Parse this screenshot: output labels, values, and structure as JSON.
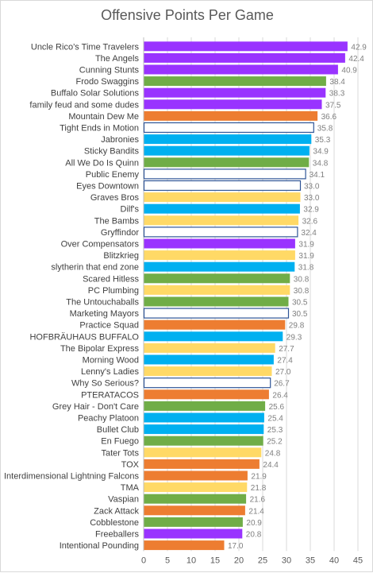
{
  "chart_data": {
    "type": "bar",
    "orientation": "horizontal",
    "title": "Offensive Points Per Game",
    "xlim": [
      0,
      45
    ],
    "xticks": [
      0,
      5,
      10,
      15,
      20,
      25,
      30,
      35,
      40,
      45
    ],
    "grid": true,
    "legend": "none",
    "colors": {
      "purple": "#9933ff",
      "green": "#70ad47",
      "orange": "#ed7d31",
      "blue": "#00b0f0",
      "yellow": "#ffd966",
      "outline": "#2f5597",
      "white": "#ffffff"
    },
    "bars": [
      {
        "label": "Uncle Rico’s Time Travelers",
        "value": 42.9,
        "value_label": "42.9",
        "color": "purple"
      },
      {
        "label": "The Angels",
        "value": 42.4,
        "value_label": "42.4",
        "color": "purple"
      },
      {
        "label": "Cunning Stunts",
        "value": 40.9,
        "value_label": "40.9",
        "color": "purple"
      },
      {
        "label": "Frodo Swaggins",
        "value": 38.4,
        "value_label": "38.4",
        "color": "green"
      },
      {
        "label": "Buffalo Solar Solutions",
        "value": 38.3,
        "value_label": "38.3",
        "color": "purple"
      },
      {
        "label": "family feud and some dudes",
        "value": 37.5,
        "value_label": "37.5",
        "color": "purple"
      },
      {
        "label": "Mountain Dew Me",
        "value": 36.6,
        "value_label": "36.6",
        "color": "orange"
      },
      {
        "label": "Tight Ends in Motion",
        "value": 35.8,
        "value_label": "35.8",
        "color": "white"
      },
      {
        "label": "Jabronies",
        "value": 35.3,
        "value_label": "35.3",
        "color": "blue"
      },
      {
        "label": "Sticky Bandits",
        "value": 34.9,
        "value_label": "34.9",
        "color": "blue"
      },
      {
        "label": "All We Do Is Quinn",
        "value": 34.8,
        "value_label": "34.8",
        "color": "green"
      },
      {
        "label": "Public Enemy",
        "value": 34.1,
        "value_label": "34.1",
        "color": "white"
      },
      {
        "label": "Eyes Downtown",
        "value": 33.0,
        "value_label": "33.0",
        "color": "white"
      },
      {
        "label": "Graves Bros",
        "value": 33.0,
        "value_label": "33.0",
        "color": "yellow"
      },
      {
        "label": "Dilf's",
        "value": 32.9,
        "value_label": "32.9",
        "color": "blue"
      },
      {
        "label": "The Bambs",
        "value": 32.6,
        "value_label": "32.6",
        "color": "yellow"
      },
      {
        "label": "Gryffindor",
        "value": 32.4,
        "value_label": "32.4",
        "color": "white"
      },
      {
        "label": "Over Compensators",
        "value": 31.9,
        "value_label": "31.9",
        "color": "purple"
      },
      {
        "label": "Blitzkrieg",
        "value": 31.9,
        "value_label": "31.9",
        "color": "yellow"
      },
      {
        "label": "slytherin that end zone",
        "value": 31.8,
        "value_label": "31.8",
        "color": "blue"
      },
      {
        "label": "Scared Hitless",
        "value": 30.8,
        "value_label": "30.8",
        "color": "green"
      },
      {
        "label": "PC Plumbing",
        "value": 30.8,
        "value_label": "30.8",
        "color": "yellow"
      },
      {
        "label": "The Untouchaballs",
        "value": 30.5,
        "value_label": "30.5",
        "color": "green"
      },
      {
        "label": "Marketing Mayors",
        "value": 30.5,
        "value_label": "30.5",
        "color": "white"
      },
      {
        "label": "Practice Squad",
        "value": 29.8,
        "value_label": "29.8",
        "color": "orange"
      },
      {
        "label": "HOFBRÄUHAUS BUFFALO",
        "value": 29.3,
        "value_label": "29.3",
        "color": "blue"
      },
      {
        "label": "The Bipolar Express",
        "value": 27.7,
        "value_label": "27.7",
        "color": "yellow"
      },
      {
        "label": "Morning Wood",
        "value": 27.4,
        "value_label": "27.4",
        "color": "blue"
      },
      {
        "label": "Lenny's Ladies",
        "value": 27.0,
        "value_label": "27.0",
        "color": "yellow"
      },
      {
        "label": "Why So Serious?",
        "value": 26.7,
        "value_label": "26.7",
        "color": "white"
      },
      {
        "label": "PTERATACOS",
        "value": 26.4,
        "value_label": "26.4",
        "color": "orange"
      },
      {
        "label": "Grey Hair - Don't Care",
        "value": 25.6,
        "value_label": "25.6",
        "color": "green"
      },
      {
        "label": "Peachy Platoon",
        "value": 25.4,
        "value_label": "25.4",
        "color": "blue"
      },
      {
        "label": "Bullet Club",
        "value": 25.3,
        "value_label": "25.3",
        "color": "blue"
      },
      {
        "label": "En Fuego",
        "value": 25.2,
        "value_label": "25.2",
        "color": "green"
      },
      {
        "label": "Tater Tots",
        "value": 24.8,
        "value_label": "24.8",
        "color": "yellow"
      },
      {
        "label": "TOX",
        "value": 24.4,
        "value_label": "24.4",
        "color": "orange"
      },
      {
        "label": "Interdimensional Lightning Falcons",
        "value": 21.9,
        "value_label": "21.9",
        "color": "orange"
      },
      {
        "label": "TMA",
        "value": 21.8,
        "value_label": "21.8",
        "color": "yellow"
      },
      {
        "label": "Vaspian",
        "value": 21.6,
        "value_label": "21.6",
        "color": "green"
      },
      {
        "label": "Zack Attack",
        "value": 21.4,
        "value_label": "21.4",
        "color": "orange"
      },
      {
        "label": "Cobblestone",
        "value": 20.9,
        "value_label": "20.9",
        "color": "green"
      },
      {
        "label": "Freeballers",
        "value": 20.8,
        "value_label": "20.8",
        "color": "purple"
      },
      {
        "label": "Intentional Pounding",
        "value": 17.0,
        "value_label": "17.0",
        "color": "orange"
      }
    ]
  }
}
